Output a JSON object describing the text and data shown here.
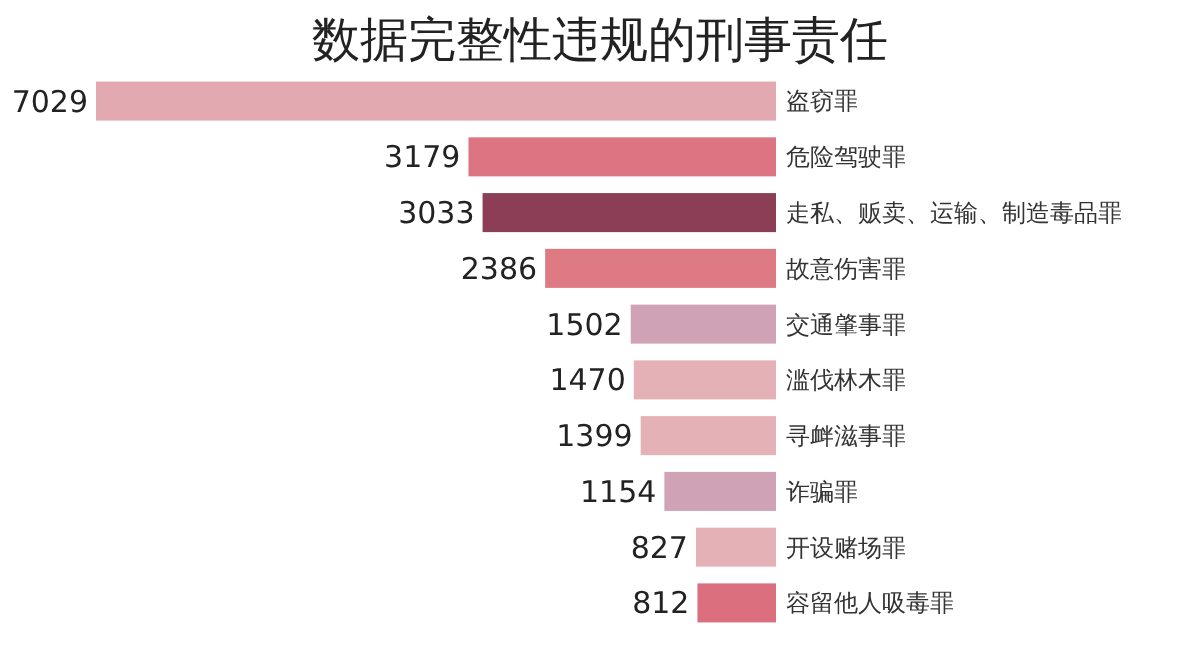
{
  "chart_data": {
    "type": "bar",
    "orientation": "horizontal",
    "title": "数据完整性违规的刑事责任",
    "data_labels": true,
    "categories": [
      "盗窃罪",
      "危险驾驶罪",
      "走私、贩卖、运输、制造毒品罪",
      "故意伤害罪",
      "交通肇事罪",
      "滥伐林木罪",
      "寻衅滋事罪",
      "诈骗罪",
      "开设赌场罪",
      "容留他人吸毒罪"
    ],
    "values": [
      7029,
      3179,
      3033,
      2386,
      1502,
      1470,
      1399,
      1154,
      827,
      812
    ],
    "colors": [
      "#e2aab0",
      "#dc7482",
      "#8c3e57",
      "#dd7a84",
      "#cfa3b5",
      "#e4b2b6",
      "#e4b2b6",
      "#cfa3b5",
      "#e4b2b6",
      "#dc6f7e"
    ]
  }
}
